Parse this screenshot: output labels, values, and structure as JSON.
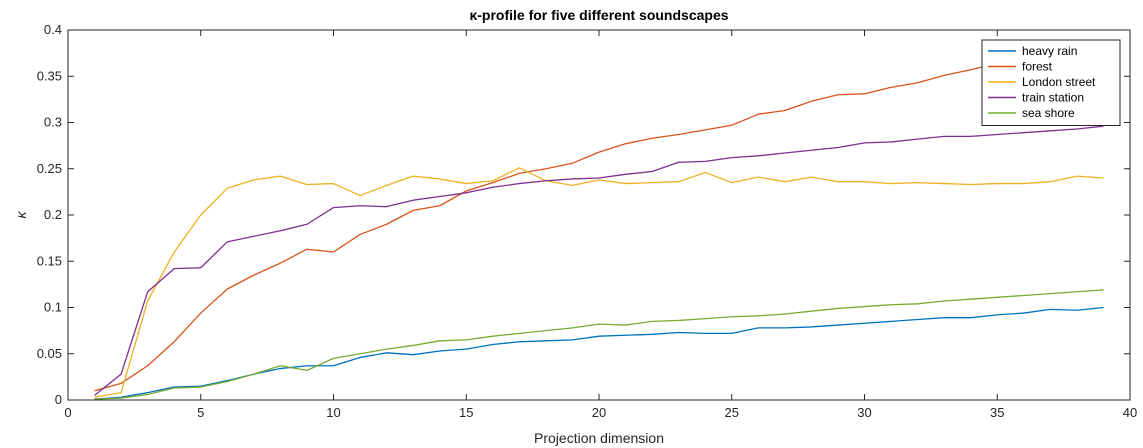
{
  "chart_data": {
    "type": "line",
    "title": "κ-profile for five different soundscapes",
    "xlabel": "Projection dimension",
    "ylabel": "κ",
    "xlim": [
      0,
      40
    ],
    "ylim": [
      0,
      0.4
    ],
    "xticks": [
      0,
      5,
      10,
      15,
      20,
      25,
      30,
      35,
      40
    ],
    "yticks": [
      0,
      0.05,
      0.1,
      0.15,
      0.2,
      0.25,
      0.3,
      0.35,
      0.4
    ],
    "xtick_labels": [
      "0",
      "5",
      "10",
      "15",
      "20",
      "25",
      "30",
      "35",
      "40"
    ],
    "ytick_labels": [
      "0",
      "0.05",
      "0.1",
      "0.15",
      "0.2",
      "0.25",
      "0.3",
      "0.35",
      "0.4"
    ],
    "grid": false,
    "legend_position": "top-right",
    "x": [
      1,
      2,
      3,
      4,
      5,
      6,
      7,
      8,
      9,
      10,
      11,
      12,
      13,
      14,
      15,
      16,
      17,
      18,
      19,
      20,
      21,
      22,
      23,
      24,
      25,
      26,
      27,
      28,
      29,
      30,
      31,
      32,
      33,
      34,
      35,
      36,
      37,
      38,
      39
    ],
    "series": [
      {
        "name": "heavy rain",
        "color": "#0072BD",
        "values": [
          0.001,
          0.003,
          0.008,
          0.014,
          0.015,
          0.021,
          0.028,
          0.034,
          0.037,
          0.037,
          0.046,
          0.051,
          0.049,
          0.053,
          0.055,
          0.06,
          0.063,
          0.064,
          0.065,
          0.069,
          0.07,
          0.071,
          0.073,
          0.072,
          0.072,
          0.078,
          0.078,
          0.079,
          0.081,
          0.083,
          0.085,
          0.087,
          0.089,
          0.089,
          0.092,
          0.094,
          0.098,
          0.097,
          0.1
        ]
      },
      {
        "name": "forest",
        "color": "#D95319",
        "values": [
          0.01,
          0.018,
          0.037,
          0.063,
          0.094,
          0.12,
          0.135,
          0.148,
          0.163,
          0.16,
          0.179,
          0.19,
          0.205,
          0.21,
          0.226,
          0.235,
          0.245,
          0.25,
          0.256,
          0.268,
          0.277,
          0.283,
          0.287,
          0.292,
          0.297,
          0.309,
          0.313,
          0.323,
          0.33,
          0.331,
          0.338,
          0.343,
          0.351,
          0.357,
          0.364,
          0.372,
          0.378,
          0.382,
          0.388
        ]
      },
      {
        "name": "London street",
        "color": "#EDB120",
        "values": [
          0.003,
          0.008,
          0.107,
          0.16,
          0.2,
          0.229,
          0.238,
          0.242,
          0.233,
          0.234,
          0.221,
          0.232,
          0.242,
          0.239,
          0.234,
          0.237,
          0.251,
          0.237,
          0.232,
          0.238,
          0.234,
          0.235,
          0.236,
          0.246,
          0.235,
          0.241,
          0.236,
          0.241,
          0.236,
          0.236,
          0.234,
          0.235,
          0.234,
          0.233,
          0.234,
          0.234,
          0.236,
          0.242,
          0.24
        ]
      },
      {
        "name": "train station",
        "color": "#7E2F8E",
        "values": [
          0.005,
          0.028,
          0.117,
          0.142,
          0.143,
          0.171,
          0.177,
          0.183,
          0.19,
          0.208,
          0.21,
          0.209,
          0.216,
          0.22,
          0.224,
          0.23,
          0.234,
          0.237,
          0.239,
          0.24,
          0.244,
          0.247,
          0.257,
          0.258,
          0.262,
          0.264,
          0.267,
          0.27,
          0.273,
          0.278,
          0.279,
          0.282,
          0.285,
          0.285,
          0.287,
          0.289,
          0.291,
          0.293,
          0.296
        ]
      },
      {
        "name": "sea shore",
        "color": "#77AC30",
        "values": [
          0.001,
          0.002,
          0.006,
          0.013,
          0.014,
          0.02,
          0.028,
          0.037,
          0.032,
          0.045,
          0.05,
          0.055,
          0.059,
          0.064,
          0.065,
          0.069,
          0.072,
          0.075,
          0.078,
          0.082,
          0.081,
          0.085,
          0.086,
          0.088,
          0.09,
          0.091,
          0.093,
          0.096,
          0.099,
          0.101,
          0.103,
          0.104,
          0.107,
          0.109,
          0.111,
          0.113,
          0.115,
          0.117,
          0.119
        ]
      }
    ]
  }
}
